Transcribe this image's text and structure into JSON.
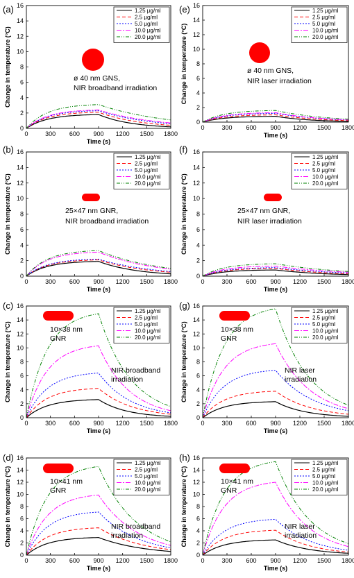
{
  "chart_data": [
    {
      "id": "a",
      "panel_label": "(a)",
      "type": "line",
      "xlabel": "Time (s)",
      "ylabel": "Change in temperature (°C)",
      "xlim": [
        0,
        1800
      ],
      "ylim": [
        0,
        16
      ],
      "xticks": [
        0,
        300,
        600,
        900,
        1200,
        1500,
        1800
      ],
      "yticks": [
        0,
        2,
        4,
        6,
        8,
        10,
        12,
        14,
        16
      ],
      "legend_position": "top-right",
      "annotation": [
        "ø 40 nm GNS,",
        "NIR broadband irradiation"
      ],
      "particle_shape": "sphere",
      "series": [
        {
          "name": "1.25 μg/ml",
          "peak": 1.8,
          "end": 0.2
        },
        {
          "name": "2.5 μg/ml",
          "peak": 2.1,
          "end": 0.4
        },
        {
          "name": "5.0 μg/ml",
          "peak": 2.3,
          "end": 0.6
        },
        {
          "name": "10.0 μg/ml",
          "peak": 2.4,
          "end": 0.7
        },
        {
          "name": "20.0 μg/ml",
          "peak": 3.1,
          "end": 1.1
        }
      ]
    },
    {
      "id": "e",
      "panel_label": "(e)",
      "type": "line",
      "xlabel": "Time (s)",
      "ylabel": "Change in temperature (°C)",
      "xlim": [
        0,
        1800
      ],
      "ylim": [
        0,
        16
      ],
      "xticks": [
        0,
        300,
        600,
        900,
        1200,
        1500,
        1800
      ],
      "yticks": [
        0,
        2,
        4,
        6,
        8,
        10,
        12,
        14,
        16
      ],
      "legend_position": "top-right",
      "annotation": [
        "ø 40 nm GNS,",
        "NIR laser irradiation"
      ],
      "particle_shape": "sphere",
      "series": [
        {
          "name": "1.25 μg/ml",
          "peak": 0.8,
          "end": 0.1
        },
        {
          "name": "2.5 μg/ml",
          "peak": 1.0,
          "end": 0.2
        },
        {
          "name": "5.0 μg/ml",
          "peak": 1.2,
          "end": 0.3
        },
        {
          "name": "10.0 μg/ml",
          "peak": 1.3,
          "end": 0.3
        },
        {
          "name": "20.0 μg/ml",
          "peak": 1.6,
          "end": 0.4
        }
      ]
    },
    {
      "id": "b",
      "panel_label": "(b)",
      "type": "line",
      "xlabel": "Time (s)",
      "ylabel": "Change in temperature (°C)",
      "xlim": [
        0,
        1800
      ],
      "ylim": [
        0,
        16
      ],
      "xticks": [
        0,
        300,
        600,
        900,
        1200,
        1500,
        1800
      ],
      "yticks": [
        0,
        2,
        4,
        6,
        8,
        10,
        12,
        14,
        16
      ],
      "legend_position": "top-right",
      "annotation": [
        "25×47 nm GNR,",
        "NIR broadband irradiation"
      ],
      "particle_shape": "rod",
      "series": [
        {
          "name": "1.25 μg/ml",
          "peak": 1.9,
          "end": 0.3
        },
        {
          "name": "2.5 μg/ml",
          "peak": 2.1,
          "end": 0.5
        },
        {
          "name": "5.0 μg/ml",
          "peak": 2.2,
          "end": 0.6
        },
        {
          "name": "10.0 μg/ml",
          "peak": 3.1,
          "end": 0.9
        },
        {
          "name": "20.0 μg/ml",
          "peak": 3.3,
          "end": 1.0
        }
      ]
    },
    {
      "id": "f",
      "panel_label": "(f)",
      "type": "line",
      "xlabel": "Time (s)",
      "ylabel": "Change in temperature (°C)",
      "xlim": [
        0,
        1800
      ],
      "ylim": [
        0,
        16
      ],
      "xticks": [
        0,
        300,
        600,
        900,
        1200,
        1500,
        1800
      ],
      "yticks": [
        0,
        2,
        4,
        6,
        8,
        10,
        12,
        14,
        16
      ],
      "legend_position": "top-right",
      "annotation": [
        "25×47 nm GNR,",
        "NIR laser irradiation"
      ],
      "particle_shape": "rod",
      "series": [
        {
          "name": "1.25 μg/ml",
          "peak": 0.8,
          "end": 0.2
        },
        {
          "name": "2.5 μg/ml",
          "peak": 1.0,
          "end": 0.3
        },
        {
          "name": "5.0 μg/ml",
          "peak": 1.1,
          "end": 0.4
        },
        {
          "name": "10.0 μg/ml",
          "peak": 1.3,
          "end": 0.5
        },
        {
          "name": "20.0 μg/ml",
          "peak": 1.6,
          "end": 0.6
        }
      ]
    },
    {
      "id": "c",
      "panel_label": "(c)",
      "type": "line",
      "xlabel": "Time (s)",
      "ylabel": "Change in temperature (°C)",
      "xlim": [
        0,
        1800
      ],
      "ylim": [
        0,
        16
      ],
      "xticks": [
        0,
        300,
        600,
        900,
        1200,
        1500,
        1800
      ],
      "yticks": [
        0,
        2,
        4,
        6,
        8,
        10,
        12,
        14,
        16
      ],
      "legend_position": "top-right",
      "annotation": [
        "NIR broadband",
        "irradiation"
      ],
      "particle_label": [
        "10×38 nm",
        "GNR"
      ],
      "particle_shape": "rod",
      "series": [
        {
          "name": "1.25 μg/ml",
          "peak": 2.6,
          "end": 0.2
        },
        {
          "name": "2.5 μg/ml",
          "peak": 4.2,
          "end": 0.5
        },
        {
          "name": "5.0 μg/ml",
          "peak": 6.4,
          "end": 0.7
        },
        {
          "name": "10.0 μg/ml",
          "peak": 10.3,
          "end": 1.0
        },
        {
          "name": "20.0 μg/ml",
          "peak": 14.9,
          "end": 1.6
        }
      ]
    },
    {
      "id": "g",
      "panel_label": "(g)",
      "type": "line",
      "xlabel": "Time (s)",
      "ylabel": "Change in temperature (°C)",
      "xlim": [
        0,
        1800
      ],
      "ylim": [
        0,
        16
      ],
      "xticks": [
        0,
        300,
        600,
        900,
        1200,
        1500,
        1800
      ],
      "yticks": [
        0,
        2,
        4,
        6,
        8,
        10,
        12,
        14,
        16
      ],
      "legend_position": "top-right",
      "annotation": [
        "NIR laser",
        "irradiation"
      ],
      "particle_label": [
        "10×38 nm",
        "GNR"
      ],
      "particle_shape": "rod",
      "series": [
        {
          "name": "1.25 μg/ml",
          "peak": 2.3,
          "end": 0.2
        },
        {
          "name": "2.5 μg/ml",
          "peak": 3.8,
          "end": 0.5
        },
        {
          "name": "5.0 μg/ml",
          "peak": 6.8,
          "end": 1.0
        },
        {
          "name": "10.0 μg/ml",
          "peak": 10.6,
          "end": 1.3
        },
        {
          "name": "20.0 μg/ml",
          "peak": 15.6,
          "end": 1.8
        }
      ]
    },
    {
      "id": "d",
      "panel_label": "(d)",
      "type": "line",
      "xlabel": "Time (s)",
      "ylabel": "Change in temperature (°C)",
      "xlim": [
        0,
        1800
      ],
      "ylim": [
        0,
        16
      ],
      "xticks": [
        0,
        300,
        600,
        900,
        1200,
        1500,
        1800
      ],
      "yticks": [
        0,
        2,
        4,
        6,
        8,
        10,
        12,
        14,
        16
      ],
      "legend_position": "top-right",
      "annotation": [
        "NIR broadband",
        "irradiation"
      ],
      "particle_label": [
        "10×41 nm",
        "GNR"
      ],
      "particle_shape": "rod",
      "series": [
        {
          "name": "1.25 μg/ml",
          "peak": 2.9,
          "end": 0.6
        },
        {
          "name": "2.5 μg/ml",
          "peak": 4.5,
          "end": 0.9
        },
        {
          "name": "5.0 μg/ml",
          "peak": 7.1,
          "end": 1.2
        },
        {
          "name": "10.0 μg/ml",
          "peak": 9.9,
          "end": 1.6
        },
        {
          "name": "20.0 μg/ml",
          "peak": 14.6,
          "end": 2.2
        }
      ]
    },
    {
      "id": "h",
      "panel_label": "(h)",
      "type": "line",
      "xlabel": "Time (s)",
      "ylabel": "Change in temperature (°C)",
      "xlim": [
        0,
        1800
      ],
      "ylim": [
        0,
        16
      ],
      "xticks": [
        0,
        300,
        600,
        900,
        1200,
        1500,
        1800
      ],
      "yticks": [
        0,
        2,
        4,
        6,
        8,
        10,
        12,
        14,
        16
      ],
      "legend_position": "top-right",
      "annotation": [
        "NIR laser",
        "irradiation"
      ],
      "particle_label": [
        "10×41 nm",
        "GNR"
      ],
      "particle_shape": "rod",
      "series": [
        {
          "name": "1.25 μg/ml",
          "peak": 2.5,
          "end": 0.3
        },
        {
          "name": "2.5 μg/ml",
          "peak": 4.1,
          "end": 0.5
        },
        {
          "name": "5.0 μg/ml",
          "peak": 5.9,
          "end": 0.8
        },
        {
          "name": "10.0 μg/ml",
          "peak": 12.0,
          "end": 1.4
        },
        {
          "name": "20.0 μg/ml",
          "peak": 15.4,
          "end": 1.9
        }
      ]
    }
  ],
  "style": {
    "series_colors": [
      "#000000",
      "#ff0000",
      "#0000ff",
      "#ff00ff",
      "#008000"
    ],
    "particle_color": "#ff0000",
    "irradiation_end_time": 900
  }
}
